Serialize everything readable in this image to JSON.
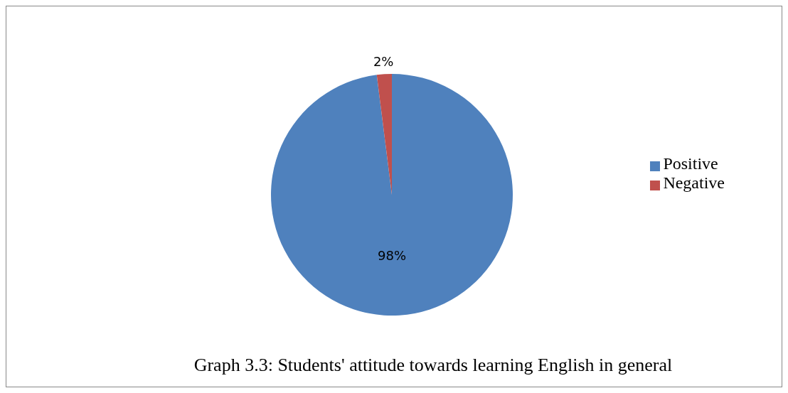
{
  "chart_data": {
    "type": "pie",
    "title": "Graph 3.3: Students' attitude towards learning English in general",
    "categories": [
      "Positive",
      "Negative"
    ],
    "values": [
      98,
      2
    ],
    "colors": [
      "#4f81bd",
      "#c0504d"
    ],
    "value_labels": [
      "98%",
      "2%"
    ],
    "legend": "right"
  }
}
